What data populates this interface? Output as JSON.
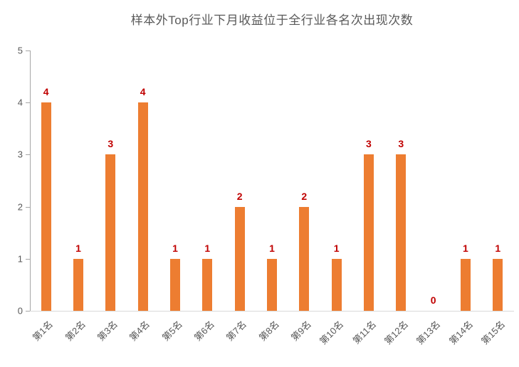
{
  "title": "样本外Top行业下月收益位于全行业各名次出现次数",
  "chart_data": {
    "type": "bar",
    "title": "样本外Top行业下月收益位于全行业各名次出现次数",
    "categories": [
      "第1名",
      "第2名",
      "第3名",
      "第4名",
      "第5名",
      "第6名",
      "第7名",
      "第8名",
      "第9名",
      "第10名",
      "第11名",
      "第12名",
      "第13名",
      "第14名",
      "第15名"
    ],
    "values": [
      4,
      1,
      3,
      4,
      1,
      1,
      2,
      1,
      2,
      1,
      3,
      3,
      0,
      1,
      1
    ],
    "xlabel": "",
    "ylabel": "",
    "ylim": [
      0,
      5
    ],
    "yticks": [
      0,
      1,
      2,
      3,
      4,
      5
    ],
    "grid": false,
    "legend": false,
    "data_labels": true,
    "colors": {
      "bar": "#ED7D31",
      "value_label": "#C00000",
      "axis": "#A6A6A6",
      "baseline": "#D9D9D9",
      "text": "#595959"
    }
  }
}
